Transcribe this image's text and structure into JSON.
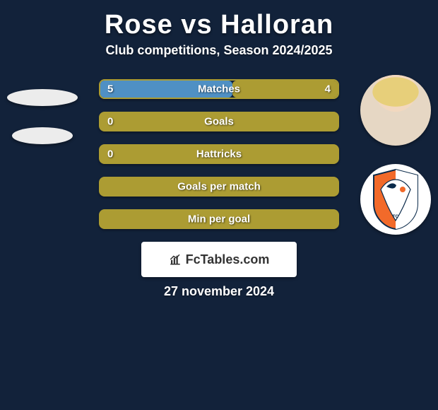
{
  "title": "Rose vs Halloran",
  "subtitle": "Club competitions, Season 2024/2025",
  "date": "27 november 2024",
  "footer_brand": "FcTables.com",
  "colors": {
    "background": "#12223a",
    "bar_fill": "#ac9c33",
    "bar_outline": "#ac9c33",
    "bar_full": "#4f90c4",
    "text": "#ffffff",
    "card_bg": "#ffffff",
    "card_text": "#333333"
  },
  "bar_style": {
    "height": 28,
    "radius": 8,
    "border_width": 2,
    "label_fontsize": 15,
    "gap": 18
  },
  "right_badge_colors": {
    "shield": "#f26a2a",
    "panel": "#ffffff",
    "figure": "#0a2a4a"
  },
  "bars": [
    {
      "label": "Matches",
      "left": "5",
      "right": "4",
      "lv": 5,
      "rv": 4,
      "full": false
    },
    {
      "label": "Goals",
      "left": "0",
      "right": "",
      "lv": 0,
      "rv": 0,
      "full": false
    },
    {
      "label": "Hattricks",
      "left": "0",
      "right": "",
      "lv": 0,
      "rv": 0,
      "full": false
    },
    {
      "label": "Goals per match",
      "left": "",
      "right": "",
      "lv": 0,
      "rv": 0,
      "full": false
    },
    {
      "label": "Min per goal",
      "left": "",
      "right": "",
      "lv": 0,
      "rv": 0,
      "full": false
    }
  ]
}
